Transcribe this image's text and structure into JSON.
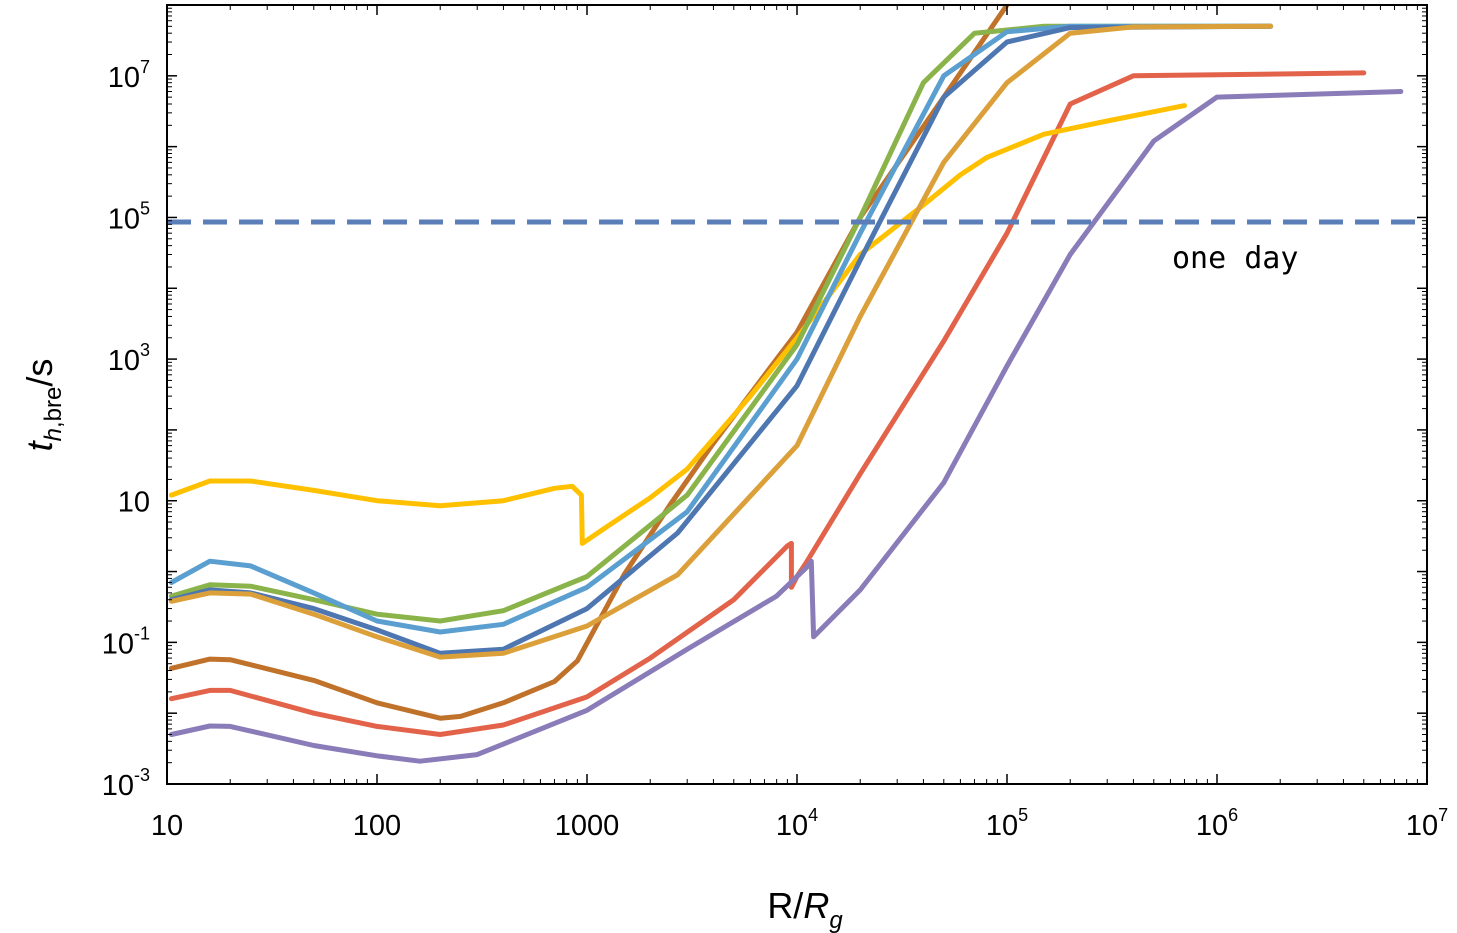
{
  "chart_data": {
    "type": "line",
    "title": "",
    "xlabel": {
      "main": "R/",
      "italic": "R",
      "sub": "g"
    },
    "ylabel": {
      "italic": "t",
      "sub": "h,bre",
      "tail": "/s"
    },
    "xscale": "log",
    "yscale": "log",
    "xlim": [
      10,
      10000000
    ],
    "ylim": [
      0.001,
      100000000
    ],
    "x_ticks": [
      {
        "v": 10,
        "base": "10",
        "exp": ""
      },
      {
        "v": 100,
        "base": "100",
        "exp": ""
      },
      {
        "v": 1000,
        "base": "1000",
        "exp": ""
      },
      {
        "v": 10000,
        "base": "10",
        "exp": "4"
      },
      {
        "v": 100000,
        "base": "10",
        "exp": "5"
      },
      {
        "v": 1000000,
        "base": "10",
        "exp": "6"
      },
      {
        "v": 10000000,
        "base": "10",
        "exp": "7"
      }
    ],
    "y_ticks": [
      {
        "v": 0.001,
        "base": "10",
        "exp": "-3"
      },
      {
        "v": 0.1,
        "base": "10",
        "exp": "-1"
      },
      {
        "v": 10,
        "base": "10",
        "exp": ""
      },
      {
        "v": 1000,
        "base": "10",
        "exp": "3"
      },
      {
        "v": 100000,
        "base": "10",
        "exp": "5"
      },
      {
        "v": 10000000,
        "base": "10",
        "exp": "7"
      }
    ],
    "grid": false,
    "legend": "none",
    "reference_line": {
      "y": 86400,
      "style": "dashed",
      "color": "#5B7DB8",
      "label": "one day"
    },
    "series": [
      {
        "color": "#C0722A",
        "points": [
          [
            10.5,
            0.043
          ],
          [
            16,
            0.058
          ],
          [
            20,
            0.057
          ],
          [
            50,
            0.029
          ],
          [
            100,
            0.014
          ],
          [
            200,
            0.0085
          ],
          [
            250,
            0.009
          ],
          [
            400,
            0.014
          ],
          [
            700,
            0.028
          ],
          [
            900,
            0.055
          ],
          [
            1500,
            0.9
          ],
          [
            2500,
            9
          ],
          [
            4000,
            65
          ],
          [
            8000,
            1000
          ],
          [
            10000,
            2400
          ],
          [
            20000,
            100000
          ],
          [
            50000,
            5000000
          ],
          [
            100000,
            100000000
          ]
        ]
      },
      {
        "color": "#E2634A",
        "points": [
          [
            10.5,
            0.016
          ],
          [
            16,
            0.021
          ],
          [
            20,
            0.021
          ],
          [
            50,
            0.01
          ],
          [
            100,
            0.0065
          ],
          [
            200,
            0.005
          ],
          [
            400,
            0.0068
          ],
          [
            1000,
            0.017
          ],
          [
            2000,
            0.06
          ],
          [
            5000,
            0.4
          ],
          [
            9000,
            2.3
          ],
          [
            9400,
            2.5
          ],
          [
            9400,
            0.6
          ],
          [
            10000,
            0.85
          ],
          [
            11000,
            1.3
          ],
          [
            20000,
            24
          ],
          [
            50000,
            1800
          ],
          [
            100000,
            60000
          ],
          [
            200000,
            4000000
          ],
          [
            400000,
            10000000
          ],
          [
            5000000,
            11000000
          ]
        ]
      },
      {
        "color": "#8A7CB8",
        "points": [
          [
            10.5,
            0.005
          ],
          [
            16,
            0.0066
          ],
          [
            20,
            0.0065
          ],
          [
            50,
            0.0035
          ],
          [
            100,
            0.0025
          ],
          [
            160,
            0.0021
          ],
          [
            300,
            0.0026
          ],
          [
            1000,
            0.011
          ],
          [
            3000,
            0.08
          ],
          [
            8000,
            0.45
          ],
          [
            11300,
            1.2
          ],
          [
            11700,
            1.4
          ],
          [
            12000,
            0.12
          ],
          [
            20000,
            0.55
          ],
          [
            50000,
            18
          ],
          [
            100000,
            800
          ],
          [
            200000,
            30000
          ],
          [
            500000,
            1200000
          ],
          [
            1000000,
            5000000
          ],
          [
            7500000,
            6000000
          ]
        ]
      },
      {
        "color": "#FFC000",
        "points": [
          [
            10.5,
            12
          ],
          [
            16,
            19
          ],
          [
            25,
            19
          ],
          [
            50,
            14
          ],
          [
            100,
            10
          ],
          [
            200,
            8.5
          ],
          [
            400,
            10
          ],
          [
            700,
            15
          ],
          [
            850,
            16
          ],
          [
            940,
            12
          ],
          [
            950,
            2.5
          ],
          [
            1200,
            4
          ],
          [
            2000,
            11
          ],
          [
            3000,
            28
          ],
          [
            6000,
            300
          ],
          [
            10000,
            2000
          ],
          [
            20000,
            30000
          ],
          [
            40000,
            150000
          ],
          [
            60000,
            400000
          ],
          [
            80000,
            700000
          ],
          [
            150000,
            1500000
          ],
          [
            300000,
            2300000
          ],
          [
            700000,
            3800000
          ]
        ]
      },
      {
        "color": "#8AB34A",
        "points": [
          [
            10.5,
            0.45
          ],
          [
            16,
            0.65
          ],
          [
            25,
            0.62
          ],
          [
            50,
            0.4
          ],
          [
            100,
            0.25
          ],
          [
            200,
            0.2
          ],
          [
            400,
            0.28
          ],
          [
            1000,
            0.85
          ],
          [
            3000,
            12
          ],
          [
            10000,
            1600
          ],
          [
            20000,
            100000
          ],
          [
            40000,
            8000000
          ],
          [
            70000,
            40000000
          ],
          [
            150000,
            50000000
          ],
          [
            1800000,
            50000000
          ]
        ]
      },
      {
        "color": "#5A9FCF",
        "points": [
          [
            10.5,
            0.7
          ],
          [
            16,
            1.4
          ],
          [
            25,
            1.2
          ],
          [
            50,
            0.5
          ],
          [
            100,
            0.2
          ],
          [
            200,
            0.14
          ],
          [
            400,
            0.18
          ],
          [
            1000,
            0.6
          ],
          [
            3000,
            7
          ],
          [
            10000,
            1000
          ],
          [
            20000,
            60000
          ],
          [
            50000,
            10000000
          ],
          [
            100000,
            42000000
          ],
          [
            200000,
            50000000
          ],
          [
            1800000,
            50000000
          ]
        ]
      },
      {
        "color": "#4E76B1",
        "points": [
          [
            10.5,
            0.4
          ],
          [
            16,
            0.55
          ],
          [
            25,
            0.5
          ],
          [
            50,
            0.3
          ],
          [
            100,
            0.15
          ],
          [
            200,
            0.07
          ],
          [
            400,
            0.08
          ],
          [
            1000,
            0.3
          ],
          [
            2700,
            3.5
          ],
          [
            10000,
            420
          ],
          [
            20000,
            25000
          ],
          [
            50000,
            5000000
          ],
          [
            100000,
            30000000
          ],
          [
            200000,
            48000000
          ],
          [
            1800000,
            50000000
          ]
        ]
      },
      {
        "color": "#DCA03A",
        "points": [
          [
            10.5,
            0.38
          ],
          [
            16,
            0.5
          ],
          [
            25,
            0.48
          ],
          [
            50,
            0.25
          ],
          [
            100,
            0.12
          ],
          [
            200,
            0.062
          ],
          [
            400,
            0.07
          ],
          [
            1000,
            0.17
          ],
          [
            2700,
            0.9
          ],
          [
            10000,
            60
          ],
          [
            20000,
            4000
          ],
          [
            50000,
            600000
          ],
          [
            100000,
            8000000
          ],
          [
            200000,
            40000000
          ],
          [
            400000,
            49000000
          ],
          [
            1800000,
            50000000
          ]
        ]
      }
    ]
  }
}
